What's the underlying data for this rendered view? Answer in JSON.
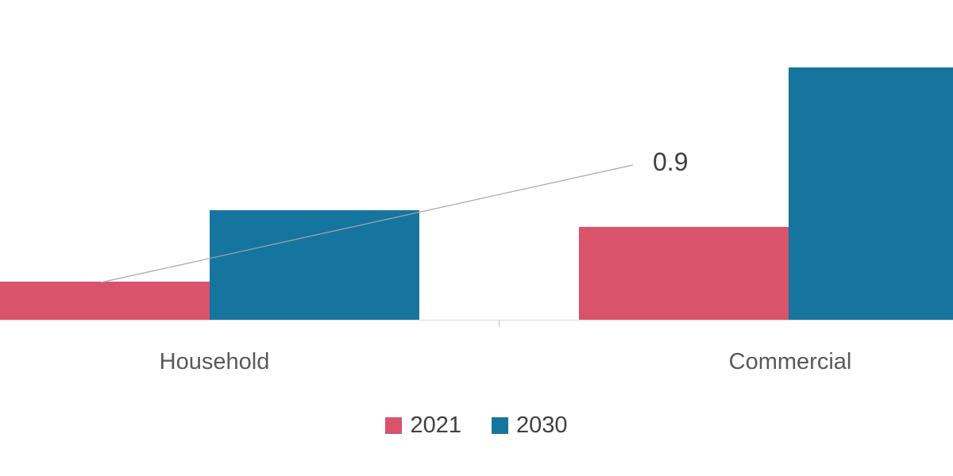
{
  "chart_data": {
    "type": "bar",
    "categories": [
      "Household",
      "Commercial"
    ],
    "series": [
      {
        "name": "2021",
        "color": "#d9536b",
        "values": [
          0.9,
          2.2
        ]
      },
      {
        "name": "2030",
        "color": "#16759e",
        "values": [
          2.6,
          6.0
        ]
      }
    ],
    "title": "",
    "xlabel": "",
    "ylabel": "",
    "ylim": [
      0,
      6.2
    ],
    "grid": false,
    "legend_position": "bottom-center",
    "annotation": {
      "text": "0.9"
    }
  }
}
